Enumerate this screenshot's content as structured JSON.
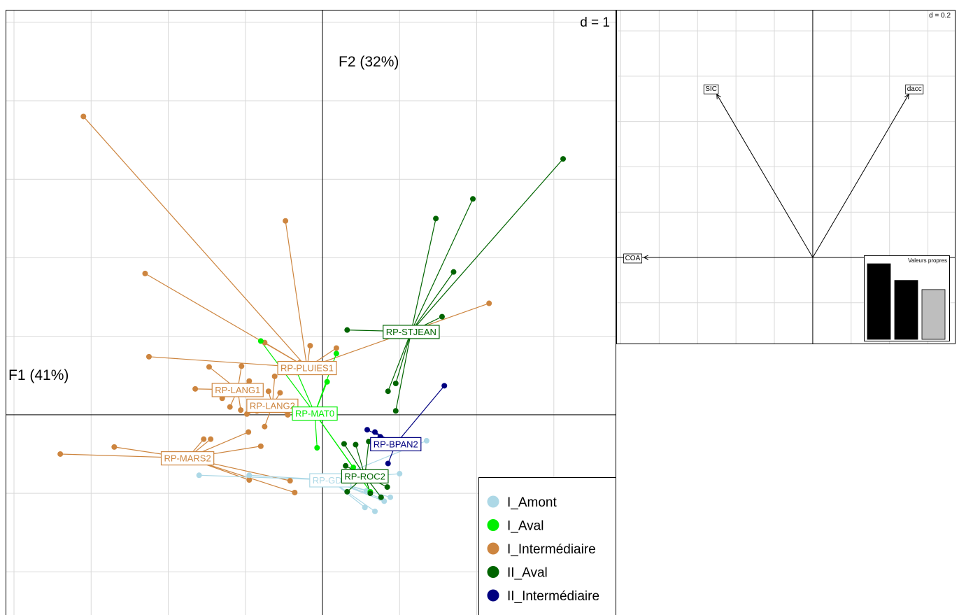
{
  "chart_data": [
    {
      "type": "scatter",
      "subtype": "class-star-plot",
      "axis_x_label": "F1 (41%)",
      "axis_y_label": "F2 (32%)",
      "grid_label": "d = 1",
      "grid": true,
      "grid_step": 1,
      "xlim": [
        -4.1,
        3.8
      ],
      "ylim": [
        -2.55,
        5.15
      ],
      "legend": {
        "placement": "bottom-right",
        "entries": [
          {
            "name": "I_Amont",
            "color": "#ADD8E6"
          },
          {
            "name": "I_Aval",
            "color": "#00EE00"
          },
          {
            "name": "I_Intermédiaire",
            "color": "#CD853F"
          },
          {
            "name": "II_Aval",
            "color": "#006400"
          },
          {
            "name": "II_Intermédiaire",
            "color": "#000080"
          }
        ]
      },
      "groups": [
        {
          "label": "RP-LANG1",
          "legend_class": "I_Intermédiaire",
          "centroid": [
            -1.1,
            0.32
          ],
          "points": [
            [
              -1.65,
              0.33
            ],
            [
              -1.47,
              0.61
            ],
            [
              -1.05,
              0.62
            ],
            [
              -1.3,
              0.21
            ],
            [
              -1.2,
              0.1
            ],
            [
              -1.0,
              0.27
            ],
            [
              -0.95,
              0.43
            ],
            [
              -1.06,
              0.06
            ],
            [
              -1.23,
              0.36
            ]
          ]
        },
        {
          "label": "RP-LANG2",
          "legend_class": "I_Intermédiaire",
          "centroid": [
            -0.65,
            0.12
          ],
          "points": [
            [
              -0.62,
              0.49
            ],
            [
              -0.98,
              0.01
            ],
            [
              -0.8,
              0.14
            ],
            [
              -0.7,
              0.3
            ],
            [
              -0.55,
              0.28
            ],
            [
              -0.45,
              0.0
            ],
            [
              -0.4,
              0.11
            ],
            [
              -0.75,
              -0.15
            ],
            [
              -0.85,
              0.05
            ]
          ]
        },
        {
          "label": "RP-PLUIES1",
          "legend_class": "I_Intermédiaire",
          "centroid": [
            -0.2,
            0.6
          ],
          "points": [
            [
              -3.1,
              3.8
            ],
            [
              -2.3,
              1.8
            ],
            [
              -2.25,
              0.74
            ],
            [
              -0.48,
              2.47
            ],
            [
              0.18,
              0.85
            ],
            [
              -0.16,
              0.88
            ],
            [
              -0.75,
              0.92
            ],
            [
              2.16,
              1.42
            ],
            [
              -0.3,
              0.66
            ]
          ]
        },
        {
          "label": "RP-MARS2",
          "legend_class": "I_Intermédiaire",
          "centroid": [
            -1.75,
            -0.55
          ],
          "points": [
            [
              -3.4,
              -0.5
            ],
            [
              -2.7,
              -0.41
            ],
            [
              -1.45,
              -0.31
            ],
            [
              -0.96,
              -0.22
            ],
            [
              -0.8,
              -0.4
            ],
            [
              -0.95,
              -0.83
            ],
            [
              -0.42,
              -0.84
            ],
            [
              -0.36,
              -0.99
            ],
            [
              -1.54,
              -0.31
            ]
          ]
        },
        {
          "label": "RP-GDE",
          "legend_class": "I_Amont",
          "centroid": [
            0.1,
            -0.83
          ],
          "points": [
            [
              -1.6,
              -0.77
            ],
            [
              -0.95,
              -0.77
            ],
            [
              1.0,
              -0.75
            ],
            [
              1.35,
              -0.33
            ],
            [
              0.55,
              -1.18
            ],
            [
              0.68,
              -1.23
            ],
            [
              0.88,
              -1.05
            ],
            [
              0.75,
              -1.06
            ],
            [
              0.8,
              -1.1
            ],
            [
              0.57,
              -0.97
            ]
          ]
        },
        {
          "label": "RP-MAT0",
          "legend_class": "I_Aval",
          "centroid": [
            -0.1,
            0.02
          ],
          "points": [
            [
              -0.8,
              0.94
            ],
            [
              0.18,
              0.78
            ],
            [
              -0.07,
              -0.42
            ],
            [
              0.4,
              -0.67
            ],
            [
              0.62,
              -0.98
            ],
            [
              0.06,
              0.42
            ],
            [
              -0.33,
              0.54
            ]
          ]
        },
        {
          "label": "RP-STJEAN",
          "legend_class": "II_Aval",
          "centroid": [
            1.15,
            1.06
          ],
          "points": [
            [
              3.12,
              3.26
            ],
            [
              1.95,
              2.75
            ],
            [
              1.47,
              2.5
            ],
            [
              1.7,
              1.82
            ],
            [
              1.55,
              1.25
            ],
            [
              0.32,
              1.08
            ],
            [
              0.95,
              0.4
            ],
            [
              0.85,
              0.3
            ],
            [
              0.95,
              0.05
            ]
          ]
        },
        {
          "label": "RP-ROC2",
          "legend_class": "II_Aval",
          "centroid": [
            0.55,
            -0.78
          ],
          "points": [
            [
              0.28,
              -0.37
            ],
            [
              0.43,
              -0.38
            ],
            [
              0.6,
              -0.34
            ],
            [
              0.3,
              -0.65
            ],
            [
              0.76,
              -1.05
            ],
            [
              0.62,
              -1.0
            ],
            [
              0.84,
              -0.92
            ],
            [
              0.7,
              -0.78
            ],
            [
              0.32,
              -0.98
            ]
          ]
        },
        {
          "label": "RP-BPAN2",
          "legend_class": "II_Intermédiaire",
          "centroid": [
            0.95,
            -0.37
          ],
          "points": [
            [
              1.58,
              0.37
            ],
            [
              0.58,
              -0.19
            ],
            [
              0.68,
              -0.22
            ],
            [
              0.75,
              -0.28
            ],
            [
              0.85,
              -0.62
            ]
          ]
        }
      ]
    },
    {
      "type": "scatter",
      "subtype": "correlation-circle",
      "grid_label": "d = 0.2",
      "grid": true,
      "xlim": [
        -1.02,
        0.74
      ],
      "ylim": [
        -0.38,
        1.09
      ],
      "variables": [
        {
          "name": "SIC",
          "x": -0.5,
          "y": 0.72
        },
        {
          "name": "dacc",
          "x": 0.5,
          "y": 0.72
        },
        {
          "name": "COA",
          "x": -0.88,
          "y": 0.0
        }
      ],
      "eigenvalues": {
        "title": "Valeurs propres",
        "values": [
          0.41,
          0.32,
          0.27
        ],
        "selected_axes": 2,
        "bar_colors": [
          "#000000",
          "#000000",
          "#BEBEBE"
        ]
      }
    }
  ]
}
